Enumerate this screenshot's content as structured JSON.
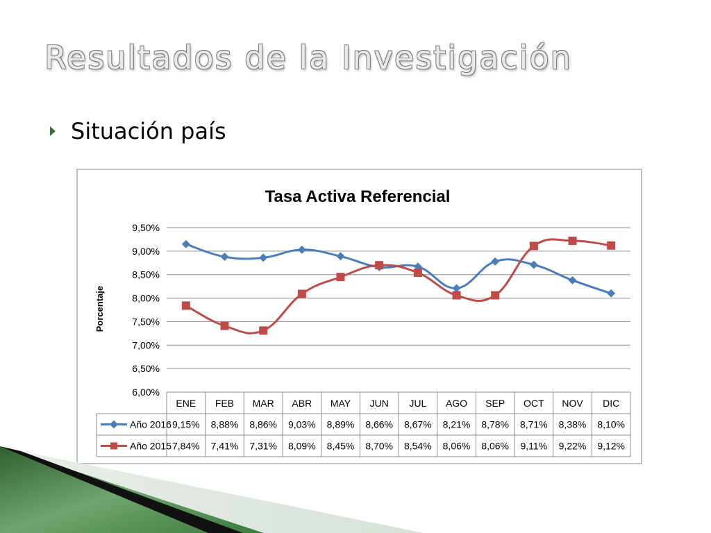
{
  "slide": {
    "title": "Resultados de la Investigación",
    "bullet": "Situación país"
  },
  "colors": {
    "series_2016": "#4a7ebb",
    "series_2015": "#be4b48",
    "grid": "#8c8c8c",
    "accent_green": "#3b6e3b"
  },
  "chart_data": {
    "type": "line",
    "title": "Tasa Activa Referencial",
    "ylabel": "Porcentaje",
    "xlabel": "",
    "categories": [
      "ENE",
      "FEB",
      "MAR",
      "ABR",
      "MAY",
      "JUN",
      "JUL",
      "AGO",
      "SEP",
      "OCT",
      "NOV",
      "DIC"
    ],
    "ylim": [
      6.0,
      9.5
    ],
    "yticks": [
      "9,50%",
      "9,00%",
      "8,50%",
      "8,00%",
      "7,50%",
      "7,00%",
      "6,50%",
      "6,00%"
    ],
    "grid": true,
    "legend": "data-table",
    "series": [
      {
        "name": "Año 2016",
        "marker": "diamond",
        "values": [
          9.15,
          8.88,
          8.86,
          9.03,
          8.89,
          8.66,
          8.67,
          8.21,
          8.78,
          8.71,
          8.38,
          8.1
        ],
        "labels": [
          "9,15%",
          "8,88%",
          "8,86%",
          "9,03%",
          "8,89%",
          "8,66%",
          "8,67%",
          "8,21%",
          "8,78%",
          "8,71%",
          "8,38%",
          "8,10%"
        ]
      },
      {
        "name": "Año 2015",
        "marker": "square",
        "values": [
          7.84,
          7.41,
          7.31,
          8.09,
          8.45,
          8.7,
          8.54,
          8.06,
          8.06,
          9.11,
          9.22,
          9.12
        ],
        "labels": [
          "7,84%",
          "7,41%",
          "7,31%",
          "8,09%",
          "8,45%",
          "8,70%",
          "8,54%",
          "8,06%",
          "8,06%",
          "9,11%",
          "9,22%",
          "9,12%"
        ]
      }
    ]
  }
}
